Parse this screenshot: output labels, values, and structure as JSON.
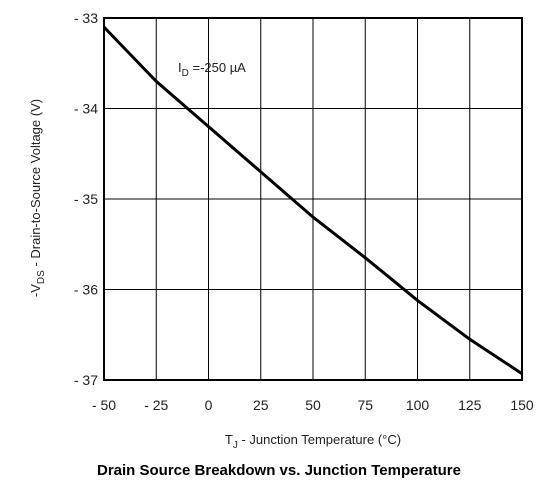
{
  "chart_data": {
    "type": "line",
    "title": "Drain Source Breakdown vs. Junction Temperature",
    "xlabel": {
      "prefix": "T",
      "sub": "J",
      "rest": " - Junction Temperature (°C)"
    },
    "ylabel": {
      "prefix": "-V",
      "sub": "DS",
      "rest": " - Drain-to-Source Voltage (V)"
    },
    "xlim": [
      -50,
      150
    ],
    "ylim": [
      -37,
      -33
    ],
    "x_ticks": [
      -50,
      -25,
      0,
      25,
      50,
      75,
      100,
      125,
      150
    ],
    "x_tick_labels": [
      "- 50",
      "- 25",
      "0",
      "25",
      "50",
      "75",
      "100",
      "125",
      "150"
    ],
    "y_ticks": [
      -33,
      -34,
      -35,
      -36,
      -37
    ],
    "y_tick_labels": [
      "- 33",
      "- 34",
      "- 35",
      "- 36",
      "- 37"
    ],
    "grid": true,
    "annotation": {
      "prefix": "I",
      "sub": "D",
      "rest": " =-250 µA"
    },
    "series": [
      {
        "x": [
          -50,
          -25,
          0,
          25,
          50,
          75,
          100,
          125,
          150
        ],
        "y": [
          -33.1,
          -33.7,
          -34.2,
          -34.7,
          -35.2,
          -35.65,
          -36.12,
          -36.55,
          -36.93
        ]
      }
    ]
  }
}
